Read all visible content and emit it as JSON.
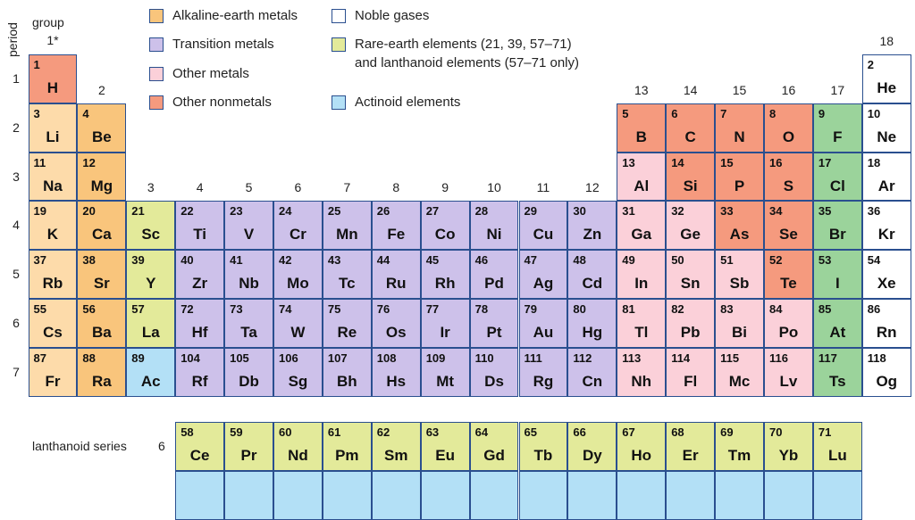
{
  "axis": {
    "group_title": "group",
    "period_title": "period"
  },
  "group_labels": [
    {
      "text": "1*",
      "col": 1,
      "row": 1
    },
    {
      "text": "2",
      "col": 2,
      "row": 2
    },
    {
      "text": "3",
      "col": 3,
      "row": 4
    },
    {
      "text": "4",
      "col": 4,
      "row": 4
    },
    {
      "text": "5",
      "col": 5,
      "row": 4
    },
    {
      "text": "6",
      "col": 6,
      "row": 4
    },
    {
      "text": "7",
      "col": 7,
      "row": 4
    },
    {
      "text": "8",
      "col": 8,
      "row": 4
    },
    {
      "text": "9",
      "col": 9,
      "row": 4
    },
    {
      "text": "10",
      "col": 10,
      "row": 4
    },
    {
      "text": "11",
      "col": 11,
      "row": 4
    },
    {
      "text": "12",
      "col": 12,
      "row": 4
    },
    {
      "text": "13",
      "col": 13,
      "row": 2
    },
    {
      "text": "14",
      "col": 14,
      "row": 2
    },
    {
      "text": "15",
      "col": 15,
      "row": 2
    },
    {
      "text": "16",
      "col": 16,
      "row": 2
    },
    {
      "text": "17",
      "col": 17,
      "row": 2
    },
    {
      "text": "18",
      "col": 18,
      "row": 1
    }
  ],
  "period_labels": [
    "1",
    "2",
    "3",
    "4",
    "5",
    "6",
    "7"
  ],
  "legend": [
    {
      "label": "Alkaline-earth metals",
      "color": "#f9c57c"
    },
    {
      "label": "Transition metals",
      "color": "#cdc1ea"
    },
    {
      "label": "Other metals",
      "color": "#fbd0d9"
    },
    {
      "label": "Other nonmetals",
      "color": "#f59a7e"
    },
    {
      "label": "Noble gases",
      "color": "#ffffff"
    },
    {
      "label": "Rare-earth elements (21, 39, 57–71)",
      "label2": "and lanthanoid elements (57–71 only)",
      "color": "#e3ea9a"
    },
    {
      "label": "Actinoid elements",
      "color": "#b3e0f6"
    }
  ],
  "colors": {
    "alkali": "#fddbaa",
    "alkaline": "#f9c57c",
    "transition": "#cdc1ea",
    "other_metal": "#fbd0d9",
    "nonmetal": "#f59a7e",
    "halogen": "#9bd39b",
    "noble": "#ffffff",
    "rare": "#e3ea9a",
    "actinoid": "#b3e0f6",
    "border": "#2a4f8f",
    "metalloid_line": "#d7c43a"
  },
  "elements": [
    {
      "n": "1",
      "s": "H",
      "c": 1,
      "r": 1,
      "t": "nonmetal"
    },
    {
      "n": "2",
      "s": "He",
      "c": 18,
      "r": 1,
      "t": "noble"
    },
    {
      "n": "3",
      "s": "Li",
      "c": 1,
      "r": 2,
      "t": "alkali"
    },
    {
      "n": "4",
      "s": "Be",
      "c": 2,
      "r": 2,
      "t": "alkaline"
    },
    {
      "n": "5",
      "s": "B",
      "c": 13,
      "r": 2,
      "t": "nonmetal"
    },
    {
      "n": "6",
      "s": "C",
      "c": 14,
      "r": 2,
      "t": "nonmetal"
    },
    {
      "n": "7",
      "s": "N",
      "c": 15,
      "r": 2,
      "t": "nonmetal"
    },
    {
      "n": "8",
      "s": "O",
      "c": 16,
      "r": 2,
      "t": "nonmetal"
    },
    {
      "n": "9",
      "s": "F",
      "c": 17,
      "r": 2,
      "t": "halogen"
    },
    {
      "n": "10",
      "s": "Ne",
      "c": 18,
      "r": 2,
      "t": "noble"
    },
    {
      "n": "11",
      "s": "Na",
      "c": 1,
      "r": 3,
      "t": "alkali"
    },
    {
      "n": "12",
      "s": "Mg",
      "c": 2,
      "r": 3,
      "t": "alkaline"
    },
    {
      "n": "13",
      "s": "Al",
      "c": 13,
      "r": 3,
      "t": "other_metal"
    },
    {
      "n": "14",
      "s": "Si",
      "c": 14,
      "r": 3,
      "t": "nonmetal"
    },
    {
      "n": "15",
      "s": "P",
      "c": 15,
      "r": 3,
      "t": "nonmetal"
    },
    {
      "n": "16",
      "s": "S",
      "c": 16,
      "r": 3,
      "t": "nonmetal"
    },
    {
      "n": "17",
      "s": "Cl",
      "c": 17,
      "r": 3,
      "t": "halogen"
    },
    {
      "n": "18",
      "s": "Ar",
      "c": 18,
      "r": 3,
      "t": "noble"
    },
    {
      "n": "19",
      "s": "K",
      "c": 1,
      "r": 4,
      "t": "alkali"
    },
    {
      "n": "20",
      "s": "Ca",
      "c": 2,
      "r": 4,
      "t": "alkaline"
    },
    {
      "n": "21",
      "s": "Sc",
      "c": 3,
      "r": 4,
      "t": "rare"
    },
    {
      "n": "22",
      "s": "Ti",
      "c": 4,
      "r": 4,
      "t": "transition"
    },
    {
      "n": "23",
      "s": "V",
      "c": 5,
      "r": 4,
      "t": "transition"
    },
    {
      "n": "24",
      "s": "Cr",
      "c": 6,
      "r": 4,
      "t": "transition"
    },
    {
      "n": "25",
      "s": "Mn",
      "c": 7,
      "r": 4,
      "t": "transition"
    },
    {
      "n": "26",
      "s": "Fe",
      "c": 8,
      "r": 4,
      "t": "transition"
    },
    {
      "n": "27",
      "s": "Co",
      "c": 9,
      "r": 4,
      "t": "transition"
    },
    {
      "n": "28",
      "s": "Ni",
      "c": 10,
      "r": 4,
      "t": "transition"
    },
    {
      "n": "29",
      "s": "Cu",
      "c": 11,
      "r": 4,
      "t": "transition"
    },
    {
      "n": "30",
      "s": "Zn",
      "c": 12,
      "r": 4,
      "t": "transition"
    },
    {
      "n": "31",
      "s": "Ga",
      "c": 13,
      "r": 4,
      "t": "other_metal"
    },
    {
      "n": "32",
      "s": "Ge",
      "c": 14,
      "r": 4,
      "t": "other_metal"
    },
    {
      "n": "33",
      "s": "As",
      "c": 15,
      "r": 4,
      "t": "nonmetal"
    },
    {
      "n": "34",
      "s": "Se",
      "c": 16,
      "r": 4,
      "t": "nonmetal"
    },
    {
      "n": "35",
      "s": "Br",
      "c": 17,
      "r": 4,
      "t": "halogen"
    },
    {
      "n": "36",
      "s": "Kr",
      "c": 18,
      "r": 4,
      "t": "noble"
    },
    {
      "n": "37",
      "s": "Rb",
      "c": 1,
      "r": 5,
      "t": "alkali"
    },
    {
      "n": "38",
      "s": "Sr",
      "c": 2,
      "r": 5,
      "t": "alkaline"
    },
    {
      "n": "39",
      "s": "Y",
      "c": 3,
      "r": 5,
      "t": "rare"
    },
    {
      "n": "40",
      "s": "Zr",
      "c": 4,
      "r": 5,
      "t": "transition"
    },
    {
      "n": "41",
      "s": "Nb",
      "c": 5,
      "r": 5,
      "t": "transition"
    },
    {
      "n": "42",
      "s": "Mo",
      "c": 6,
      "r": 5,
      "t": "transition"
    },
    {
      "n": "43",
      "s": "Tc",
      "c": 7,
      "r": 5,
      "t": "transition"
    },
    {
      "n": "44",
      "s": "Ru",
      "c": 8,
      "r": 5,
      "t": "transition"
    },
    {
      "n": "45",
      "s": "Rh",
      "c": 9,
      "r": 5,
      "t": "transition"
    },
    {
      "n": "46",
      "s": "Pd",
      "c": 10,
      "r": 5,
      "t": "transition"
    },
    {
      "n": "47",
      "s": "Ag",
      "c": 11,
      "r": 5,
      "t": "transition"
    },
    {
      "n": "48",
      "s": "Cd",
      "c": 12,
      "r": 5,
      "t": "transition"
    },
    {
      "n": "49",
      "s": "In",
      "c": 13,
      "r": 5,
      "t": "other_metal"
    },
    {
      "n": "50",
      "s": "Sn",
      "c": 14,
      "r": 5,
      "t": "other_metal"
    },
    {
      "n": "51",
      "s": "Sb",
      "c": 15,
      "r": 5,
      "t": "other_metal"
    },
    {
      "n": "52",
      "s": "Te",
      "c": 16,
      "r": 5,
      "t": "nonmetal"
    },
    {
      "n": "53",
      "s": "I",
      "c": 17,
      "r": 5,
      "t": "halogen"
    },
    {
      "n": "54",
      "s": "Xe",
      "c": 18,
      "r": 5,
      "t": "noble"
    },
    {
      "n": "55",
      "s": "Cs",
      "c": 1,
      "r": 6,
      "t": "alkali"
    },
    {
      "n": "56",
      "s": "Ba",
      "c": 2,
      "r": 6,
      "t": "alkaline"
    },
    {
      "n": "57",
      "s": "La",
      "c": 3,
      "r": 6,
      "t": "rare"
    },
    {
      "n": "72",
      "s": "Hf",
      "c": 4,
      "r": 6,
      "t": "transition"
    },
    {
      "n": "73",
      "s": "Ta",
      "c": 5,
      "r": 6,
      "t": "transition"
    },
    {
      "n": "74",
      "s": "W",
      "c": 6,
      "r": 6,
      "t": "transition"
    },
    {
      "n": "75",
      "s": "Re",
      "c": 7,
      "r": 6,
      "t": "transition"
    },
    {
      "n": "76",
      "s": "Os",
      "c": 8,
      "r": 6,
      "t": "transition"
    },
    {
      "n": "77",
      "s": "Ir",
      "c": 9,
      "r": 6,
      "t": "transition"
    },
    {
      "n": "78",
      "s": "Pt",
      "c": 10,
      "r": 6,
      "t": "transition"
    },
    {
      "n": "79",
      "s": "Au",
      "c": 11,
      "r": 6,
      "t": "transition"
    },
    {
      "n": "80",
      "s": "Hg",
      "c": 12,
      "r": 6,
      "t": "transition"
    },
    {
      "n": "81",
      "s": "Tl",
      "c": 13,
      "r": 6,
      "t": "other_metal"
    },
    {
      "n": "82",
      "s": "Pb",
      "c": 14,
      "r": 6,
      "t": "other_metal"
    },
    {
      "n": "83",
      "s": "Bi",
      "c": 15,
      "r": 6,
      "t": "other_metal"
    },
    {
      "n": "84",
      "s": "Po",
      "c": 16,
      "r": 6,
      "t": "other_metal"
    },
    {
      "n": "85",
      "s": "At",
      "c": 17,
      "r": 6,
      "t": "halogen"
    },
    {
      "n": "86",
      "s": "Rn",
      "c": 18,
      "r": 6,
      "t": "noble"
    },
    {
      "n": "87",
      "s": "Fr",
      "c": 1,
      "r": 7,
      "t": "alkali"
    },
    {
      "n": "88",
      "s": "Ra",
      "c": 2,
      "r": 7,
      "t": "alkaline"
    },
    {
      "n": "89",
      "s": "Ac",
      "c": 3,
      "r": 7,
      "t": "actinoid"
    },
    {
      "n": "104",
      "s": "Rf",
      "c": 4,
      "r": 7,
      "t": "transition"
    },
    {
      "n": "105",
      "s": "Db",
      "c": 5,
      "r": 7,
      "t": "transition"
    },
    {
      "n": "106",
      "s": "Sg",
      "c": 6,
      "r": 7,
      "t": "transition"
    },
    {
      "n": "107",
      "s": "Bh",
      "c": 7,
      "r": 7,
      "t": "transition"
    },
    {
      "n": "108",
      "s": "Hs",
      "c": 8,
      "r": 7,
      "t": "transition"
    },
    {
      "n": "109",
      "s": "Mt",
      "c": 9,
      "r": 7,
      "t": "transition"
    },
    {
      "n": "110",
      "s": "Ds",
      "c": 10,
      "r": 7,
      "t": "transition"
    },
    {
      "n": "111",
      "s": "Rg",
      "c": 11,
      "r": 7,
      "t": "transition"
    },
    {
      "n": "112",
      "s": "Cn",
      "c": 12,
      "r": 7,
      "t": "transition"
    },
    {
      "n": "113",
      "s": "Nh",
      "c": 13,
      "r": 7,
      "t": "other_metal"
    },
    {
      "n": "114",
      "s": "Fl",
      "c": 14,
      "r": 7,
      "t": "other_metal"
    },
    {
      "n": "115",
      "s": "Mc",
      "c": 15,
      "r": 7,
      "t": "other_metal"
    },
    {
      "n": "116",
      "s": "Lv",
      "c": 16,
      "r": 7,
      "t": "other_metal"
    },
    {
      "n": "117",
      "s": "Ts",
      "c": 17,
      "r": 7,
      "t": "halogen"
    },
    {
      "n": "118",
      "s": "Og",
      "c": 18,
      "r": 7,
      "t": "noble"
    }
  ],
  "lanthanoid_series": {
    "label": "lanthanoid series",
    "period": "6",
    "elements": [
      {
        "n": "58",
        "s": "Ce"
      },
      {
        "n": "59",
        "s": "Pr"
      },
      {
        "n": "60",
        "s": "Nd"
      },
      {
        "n": "61",
        "s": "Pm"
      },
      {
        "n": "62",
        "s": "Sm"
      },
      {
        "n": "63",
        "s": "Eu"
      },
      {
        "n": "64",
        "s": "Gd"
      },
      {
        "n": "65",
        "s": "Tb"
      },
      {
        "n": "66",
        "s": "Dy"
      },
      {
        "n": "67",
        "s": "Ho"
      },
      {
        "n": "68",
        "s": "Er"
      },
      {
        "n": "69",
        "s": "Tm"
      },
      {
        "n": "70",
        "s": "Yb"
      },
      {
        "n": "71",
        "s": "Lu"
      }
    ]
  }
}
